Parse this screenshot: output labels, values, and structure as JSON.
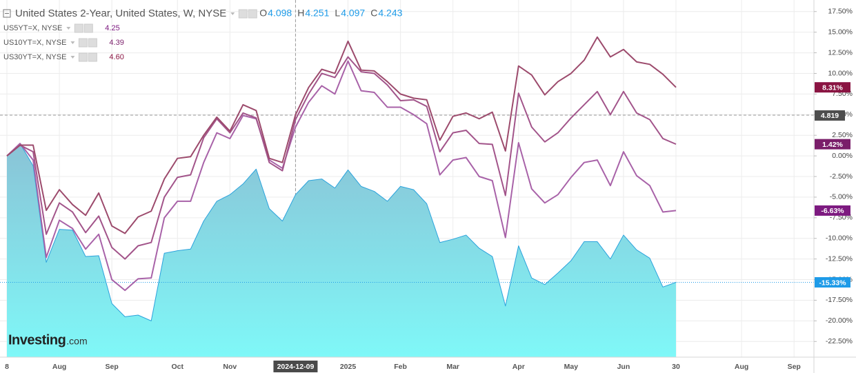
{
  "chart_data": {
    "type": "line",
    "title": "United States 2-Year, United States, W, NYSE",
    "ohlc": [
      {
        "key": "O",
        "value": "4.098"
      },
      {
        "key": "H",
        "value": "4.251"
      },
      {
        "key": "L",
        "value": "4.097"
      },
      {
        "key": "C",
        "value": "4.243"
      }
    ],
    "categories": [
      "8",
      null,
      null,
      null,
      "Aug",
      null,
      null,
      null,
      "Sep",
      null,
      null,
      null,
      null,
      "Oct",
      null,
      null,
      null,
      "Nov",
      null,
      null,
      null,
      null,
      "2024-12-09",
      null,
      null,
      null,
      "2025",
      null,
      null,
      null,
      "Feb",
      null,
      null,
      null,
      "Mar",
      null,
      null,
      null,
      null,
      "Apr",
      null,
      null,
      null,
      "May",
      null,
      null,
      null,
      "Jun",
      null,
      null,
      null,
      "30",
      null,
      null,
      null,
      null,
      "Aug",
      null,
      null,
      null,
      "Sep",
      null
    ],
    "highlighted_category": 22,
    "series": [
      {
        "name": "United States 2-Year, United States, W, NYSE",
        "color": "#2aa2dc",
        "area": true,
        "label_color": "#1e9be8",
        "values": [
          0,
          1.5,
          -1.2,
          -12.9,
          -8.9,
          -9.0,
          -12.2,
          -12.1,
          -17.9,
          -19.5,
          -19.3,
          -20.0,
          -11.8,
          -11.5,
          -11.3,
          -7.9,
          -5.5,
          -4.7,
          -3.4,
          -1.6,
          -6.4,
          -7.9,
          -4.7,
          -3.0,
          -2.8,
          -3.9,
          -1.7,
          -3.7,
          -4.3,
          -5.5,
          -3.7,
          -4.1,
          -5.8,
          -10.5,
          -10.1,
          -9.6,
          -11.2,
          -12.2,
          -18.2,
          -10.9,
          -14.8,
          -15.6,
          -14.2,
          -12.7,
          -10.4,
          -10.4,
          -12.5,
          -9.6,
          -11.4,
          -12.4,
          -15.9,
          -15.33,
          null,
          null,
          null,
          null,
          null,
          null,
          null,
          null,
          null,
          null
        ],
        "value_labels": [
          null,
          null,
          null,
          null,
          null,
          null,
          null,
          null,
          null,
          null,
          null,
          null,
          null,
          null,
          null,
          null,
          null,
          null,
          null,
          null,
          null,
          null,
          null,
          null,
          null,
          null,
          null,
          null,
          null,
          null,
          null,
          null,
          null,
          null,
          null,
          null,
          null,
          null,
          null,
          null,
          null,
          null,
          null,
          null,
          null,
          null,
          null,
          null,
          null,
          null,
          null,
          "-15.33%",
          null,
          null,
          null,
          null,
          null,
          null,
          null,
          null,
          null,
          null
        ]
      },
      {
        "name": "US5YT=X, NYSE",
        "price": "4.25",
        "color": "#a862a8",
        "label_color": "#7d1a80",
        "values": [
          0,
          1.5,
          -0.5,
          -12.3,
          -7.8,
          -8.8,
          -11.3,
          -9.5,
          -15.0,
          -16.3,
          -14.9,
          -14.8,
          -7.5,
          -5.5,
          -5.5,
          -0.8,
          2.8,
          2.1,
          4.9,
          4.5,
          -0.5,
          -1.5,
          3.5,
          6.5,
          8.5,
          7.5,
          11.5,
          7.9,
          7.7,
          5.9,
          5.9,
          5.0,
          3.9,
          -2.3,
          -0.5,
          -0.2,
          -2.5,
          -3.0,
          -9.9,
          1.6,
          -4.0,
          -5.7,
          -4.7,
          -2.6,
          -0.8,
          -0.5,
          -3.6,
          0.5,
          -2.4,
          -3.6,
          -6.8,
          -6.63,
          null,
          null,
          null,
          null,
          null,
          null,
          null,
          null,
          null,
          null
        ],
        "value_labels": [
          null,
          null,
          null,
          null,
          null,
          null,
          null,
          null,
          null,
          null,
          null,
          null,
          null,
          null,
          null,
          null,
          null,
          null,
          null,
          null,
          null,
          null,
          null,
          null,
          null,
          null,
          null,
          null,
          null,
          null,
          null,
          null,
          null,
          null,
          null,
          null,
          null,
          null,
          null,
          null,
          null,
          null,
          null,
          null,
          null,
          null,
          null,
          null,
          null,
          null,
          null,
          "-6.63%",
          null,
          null,
          null,
          null,
          null,
          null,
          null,
          null,
          null,
          null
        ]
      },
      {
        "name": "US10YT=X, NYSE",
        "price": "4.39",
        "color": "#a2548a",
        "label_color": "#7a1e6a",
        "values": [
          0,
          1.3,
          0.5,
          -9.5,
          -5.7,
          -6.8,
          -9.3,
          -7.3,
          -11.1,
          -12.5,
          -10.9,
          -10.5,
          -5.0,
          -2.6,
          -2.3,
          2.2,
          4.5,
          2.8,
          5.2,
          4.6,
          -0.8,
          -1.8,
          4.4,
          7.5,
          10.0,
          9.5,
          12.0,
          10.2,
          10.0,
          8.6,
          6.7,
          6.8,
          6.0,
          0.5,
          2.8,
          3.1,
          1.5,
          1.4,
          -4.8,
          7.6,
          3.5,
          1.7,
          2.8,
          4.6,
          6.2,
          7.8,
          5.0,
          7.8,
          5.2,
          4.4,
          2.1,
          1.42,
          null,
          null,
          null,
          null,
          null,
          null,
          null,
          null,
          null,
          null
        ],
        "value_labels": [
          null,
          null,
          null,
          null,
          null,
          null,
          null,
          null,
          null,
          null,
          null,
          null,
          null,
          null,
          null,
          null,
          null,
          null,
          null,
          null,
          null,
          null,
          null,
          null,
          null,
          null,
          null,
          null,
          null,
          null,
          null,
          null,
          null,
          null,
          null,
          null,
          null,
          null,
          null,
          null,
          null,
          null,
          null,
          null,
          null,
          null,
          null,
          null,
          null,
          null,
          null,
          "1.42%",
          null,
          null,
          null,
          null,
          null,
          null,
          null,
          null,
          null,
          null
        ]
      },
      {
        "name": "US30YT=X, NYSE",
        "price": "4.60",
        "color": "#9c4a6c",
        "label_color": "#8a1442",
        "values": [
          0,
          1.3,
          1.3,
          -6.6,
          -4.1,
          -5.9,
          -7.2,
          -4.5,
          -8.5,
          -9.4,
          -7.4,
          -6.7,
          -2.8,
          -0.3,
          -0.1,
          2.5,
          4.7,
          3.0,
          6.2,
          5.5,
          -0.3,
          -0.8,
          5.0,
          8.3,
          10.5,
          10.0,
          13.9,
          10.4,
          10.3,
          9.0,
          7.5,
          7.0,
          6.8,
          1.9,
          4.8,
          5.2,
          4.5,
          5.3,
          0.6,
          10.9,
          9.8,
          7.4,
          9.0,
          10.0,
          11.6,
          14.4,
          12.0,
          12.9,
          11.4,
          11.1,
          9.9,
          8.31,
          null,
          null,
          null,
          null,
          null,
          null,
          null,
          null,
          null,
          null
        ],
        "value_labels": [
          null,
          null,
          null,
          null,
          null,
          null,
          null,
          null,
          null,
          null,
          null,
          null,
          null,
          null,
          null,
          null,
          null,
          null,
          null,
          null,
          null,
          null,
          null,
          null,
          null,
          null,
          null,
          null,
          null,
          null,
          null,
          null,
          null,
          null,
          null,
          null,
          null,
          null,
          null,
          null,
          null,
          null,
          null,
          null,
          null,
          null,
          null,
          null,
          null,
          null,
          null,
          "8.31%",
          null,
          null,
          null,
          null,
          null,
          null,
          null,
          null,
          null,
          null
        ]
      }
    ],
    "crosshair_label": "4.819",
    "ylim": [
      -24.4,
      18.9
    ],
    "yticks": [
      {
        "value": 17.5,
        "label": "17.50%"
      },
      {
        "value": 15,
        "label": "15.00%"
      },
      {
        "value": 12.5,
        "label": "12.50%"
      },
      {
        "value": 10,
        "label": "10.00%"
      },
      {
        "value": 7.5,
        "label": "7.50%"
      },
      {
        "value": 5,
        "label": "5.00%"
      },
      {
        "value": 2.5,
        "label": "2.50%"
      },
      {
        "value": 0,
        "label": "0.00%"
      },
      {
        "value": -2.5,
        "label": "-2.50%"
      },
      {
        "value": -5,
        "label": "-5.00%"
      },
      {
        "value": -7.5,
        "label": "-7.50%"
      },
      {
        "value": -10,
        "label": "-10.00%"
      },
      {
        "value": -12.5,
        "label": "-12.50%"
      },
      {
        "value": -15,
        "label": "-15.00%"
      },
      {
        "value": -17.5,
        "label": "-17.50%"
      },
      {
        "value": -20,
        "label": "-20.00%"
      },
      {
        "value": -22.5,
        "label": "-22.50%"
      }
    ],
    "grid": true,
    "watermark": {
      "brand": "Investing",
      "suffix": ".com"
    }
  }
}
